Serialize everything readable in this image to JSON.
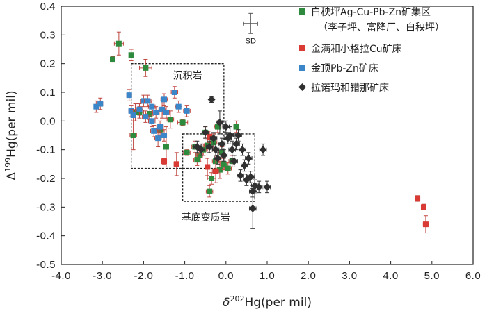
{
  "chart_data": {
    "type": "scatter",
    "title": "",
    "xlabel": {
      "symbol": "δ",
      "sup": "202",
      "main": "Hg",
      "unit": "(per mil)"
    },
    "ylabel": {
      "symbol": "Δ",
      "sup": "199",
      "main": "Hg",
      "unit": "(per mil)"
    },
    "xlim": [
      -4.0,
      6.0
    ],
    "ylim": [
      -0.5,
      0.4
    ],
    "xticks": [
      "-4.0",
      "-3.0",
      "-2.0",
      "-1.0",
      "0.0",
      "1.0",
      "2.0",
      "3.0",
      "4.0",
      "5.0",
      "6.0"
    ],
    "yticks": [
      "0.4",
      "0.3",
      "0.2",
      "0.1",
      "0.0",
      "-0.1",
      "-0.2",
      "-0.3",
      "-0.4",
      "-0.5"
    ],
    "colors": {
      "green": "#2e8b3d",
      "red": "#d93a33",
      "blue": "#3b86c9",
      "black": "#303030",
      "errorbar": "#c0463f"
    },
    "legend": [
      {
        "label": "白秧坪Ag-Cu-Pb-Zn矿集区",
        "sublabel": "（李子坪、富隆厂、白秧坪）",
        "marker": "square",
        "color": "#2e8b3d"
      },
      {
        "label": "金满和小格拉Cu矿床",
        "marker": "square",
        "color": "#d93a33"
      },
      {
        "label": "金顶Pb-Zn矿床",
        "marker": "square",
        "color": "#3b86c9"
      },
      {
        "label": "拉诺玛和错那矿床",
        "marker": "diamond",
        "color": "#303030"
      }
    ],
    "sd_label": "SD",
    "sd": {
      "x": 0.6,
      "y": 0.34,
      "xerr": 0.17,
      "yerr": 0.035
    },
    "regions": [
      {
        "label": "沉积岩",
        "x": [
          -2.3,
          -0.05
        ],
        "y": [
          -0.165,
          0.2
        ]
      },
      {
        "label": "基底变质岩",
        "x": [
          -1.05,
          0.7
        ],
        "y": [
          -0.28,
          -0.045
        ]
      }
    ],
    "series": [
      {
        "name": "白秧坪Ag-Cu-Pb-Zn矿集区",
        "marker": "square",
        "color": "#2e8b3d",
        "points": [
          [
            -2.6,
            0.27,
            0.11,
            0.04
          ],
          [
            -2.75,
            0.215,
            0,
            0.01
          ],
          [
            -2.3,
            0.23,
            0,
            0.02
          ],
          [
            -1.95,
            0.185,
            0.15,
            0.03
          ],
          [
            -2.2,
            0.03,
            0.1,
            0.03
          ],
          [
            -2.25,
            -0.05,
            0.08,
            0.05
          ],
          [
            -2.1,
            0.03,
            0.1,
            0.02
          ],
          [
            -1.85,
            0.025,
            0.1,
            0.02
          ],
          [
            -1.6,
            -0.03,
            0.08,
            0.02
          ],
          [
            -1.35,
            0.005,
            0.08,
            0.03
          ],
          [
            -1.45,
            -0.09,
            0.05,
            0.07
          ],
          [
            -1.05,
            -0.005,
            0.12,
            0.01
          ],
          [
            -0.95,
            -0.11,
            0.08,
            0.01
          ],
          [
            -0.75,
            -0.09,
            0.08,
            0.02
          ],
          [
            -0.65,
            -0.12,
            0.08,
            0.02
          ],
          [
            -0.55,
            -0.1,
            0.08,
            0.02
          ],
          [
            -0.45,
            -0.085,
            0.08,
            0.02
          ],
          [
            -0.3,
            -0.075,
            0.08,
            0.03
          ],
          [
            -0.25,
            -0.14,
            0.08,
            0.02
          ],
          [
            -0.15,
            -0.17,
            0.08,
            0.03
          ],
          [
            -0.05,
            -0.15,
            0.08,
            0.02
          ],
          [
            -0.1,
            -0.11,
            0.08,
            0.02
          ],
          [
            -0.35,
            -0.2,
            0.1,
            0.02
          ],
          [
            -0.4,
            -0.245,
            0.08,
            0.02
          ],
          [
            -0.2,
            -0.02,
            0.08,
            0.02
          ],
          [
            0.05,
            -0.165,
            0.08,
            0.02
          ],
          [
            0.25,
            -0.02,
            0.06,
            0.02
          ],
          [
            0.15,
            -0.14,
            0.08,
            0.02
          ],
          [
            -0.7,
            -0.135,
            0.08,
            0.02
          ],
          [
            -0.5,
            -0.04,
            0.08,
            0.02
          ]
        ]
      },
      {
        "name": "金满和小格拉Cu矿床",
        "marker": "square",
        "color": "#d93a33",
        "points": [
          [
            -1.5,
            -0.14,
            0.06,
            0.01
          ],
          [
            -1.2,
            -0.15,
            0.06,
            0.04
          ],
          [
            -0.45,
            -0.16,
            0.06,
            0.03
          ],
          [
            -0.25,
            -0.175,
            0.08,
            0.04
          ],
          [
            -0.4,
            -0.055,
            0.06,
            0.02
          ],
          [
            4.65,
            -0.27,
            0.05,
            0.01
          ],
          [
            4.8,
            -0.3,
            0.05,
            0.01
          ],
          [
            4.85,
            -0.36,
            0.06,
            0.03
          ]
        ]
      },
      {
        "name": "金顶Pb-Zn矿床",
        "marker": "square",
        "color": "#3b86c9",
        "points": [
          [
            -3.05,
            0.06,
            0.06,
            0.02
          ],
          [
            -3.15,
            0.05,
            0.05,
            0.02
          ],
          [
            -2.35,
            0.09,
            0.06,
            0.02
          ],
          [
            -2.3,
            0.035,
            0.06,
            0.02
          ],
          [
            -2.25,
            0.02,
            0.06,
            0.02
          ],
          [
            -2.1,
            0.04,
            0.08,
            0.02
          ],
          [
            -2.0,
            0.07,
            0.08,
            0.02
          ],
          [
            -1.9,
            0.07,
            0.08,
            0.02
          ],
          [
            -1.8,
            0.05,
            0.08,
            0.02
          ],
          [
            -1.7,
            0.03,
            0.08,
            0.02
          ],
          [
            -1.55,
            0.04,
            0.08,
            0.03
          ],
          [
            -1.5,
            0.075,
            0.08,
            0.02
          ],
          [
            -1.45,
            0.03,
            0.08,
            0.02
          ],
          [
            -1.25,
            0.1,
            0.08,
            0.02
          ],
          [
            -1.15,
            0.05,
            0.08,
            0.02
          ],
          [
            -0.95,
            0.035,
            0.08,
            0.02
          ],
          [
            -1.75,
            -0.035,
            0.08,
            0.02
          ],
          [
            -1.65,
            -0.06,
            0.08,
            0.03
          ],
          [
            -1.6,
            -0.02,
            0.08,
            0.02
          ],
          [
            -1.5,
            -0.05,
            0.06,
            0.02
          ],
          [
            -1.95,
            0.015,
            0.08,
            0.02
          ],
          [
            -1.8,
            0.0,
            0.08,
            0.02
          ]
        ]
      },
      {
        "name": "拉诺玛和错那矿床",
        "marker": "diamond",
        "color": "#303030",
        "points": [
          [
            -0.35,
            0.075,
            0.06,
            0.01
          ],
          [
            -0.15,
            -0.005,
            0.06,
            0.04
          ],
          [
            0.0,
            -0.02,
            0.08,
            0.02
          ],
          [
            0.1,
            -0.05,
            0.08,
            0.03
          ],
          [
            -0.5,
            -0.04,
            0.08,
            0.02
          ],
          [
            -0.4,
            -0.09,
            0.08,
            0.02
          ],
          [
            -0.25,
            -0.1,
            0.08,
            0.02
          ],
          [
            -0.1,
            -0.08,
            0.08,
            0.02
          ],
          [
            0.05,
            -0.06,
            0.08,
            0.02
          ],
          [
            0.15,
            -0.1,
            0.08,
            0.03
          ],
          [
            0.3,
            -0.05,
            0.08,
            0.02
          ],
          [
            0.4,
            -0.1,
            0.08,
            0.02
          ],
          [
            0.45,
            -0.155,
            0.08,
            0.02
          ],
          [
            0.55,
            -0.13,
            0.08,
            0.02
          ],
          [
            0.6,
            -0.195,
            0.08,
            0.02
          ],
          [
            0.7,
            -0.225,
            0.08,
            0.02
          ],
          [
            0.8,
            -0.23,
            0.08,
            0.02
          ],
          [
            0.9,
            -0.1,
            0.08,
            0.02
          ],
          [
            1.0,
            -0.23,
            0.08,
            0.02
          ],
          [
            0.65,
            -0.245,
            0.08,
            0.02
          ],
          [
            -0.3,
            -0.06,
            0.08,
            0.02
          ],
          [
            -0.2,
            -0.13,
            0.08,
            0.02
          ],
          [
            -0.05,
            -0.12,
            0.08,
            0.02
          ],
          [
            0.2,
            -0.14,
            0.08,
            0.02
          ],
          [
            0.35,
            -0.19,
            0.08,
            0.02
          ],
          [
            0.5,
            -0.205,
            0.08,
            0.02
          ],
          [
            0.65,
            -0.305,
            0.08,
            0.07
          ],
          [
            -0.6,
            -0.1,
            0.08,
            0.02
          ],
          [
            -0.7,
            -0.09,
            0.08,
            0.02
          ],
          [
            0.25,
            -0.08,
            0.08,
            0.02
          ]
        ]
      }
    ]
  }
}
